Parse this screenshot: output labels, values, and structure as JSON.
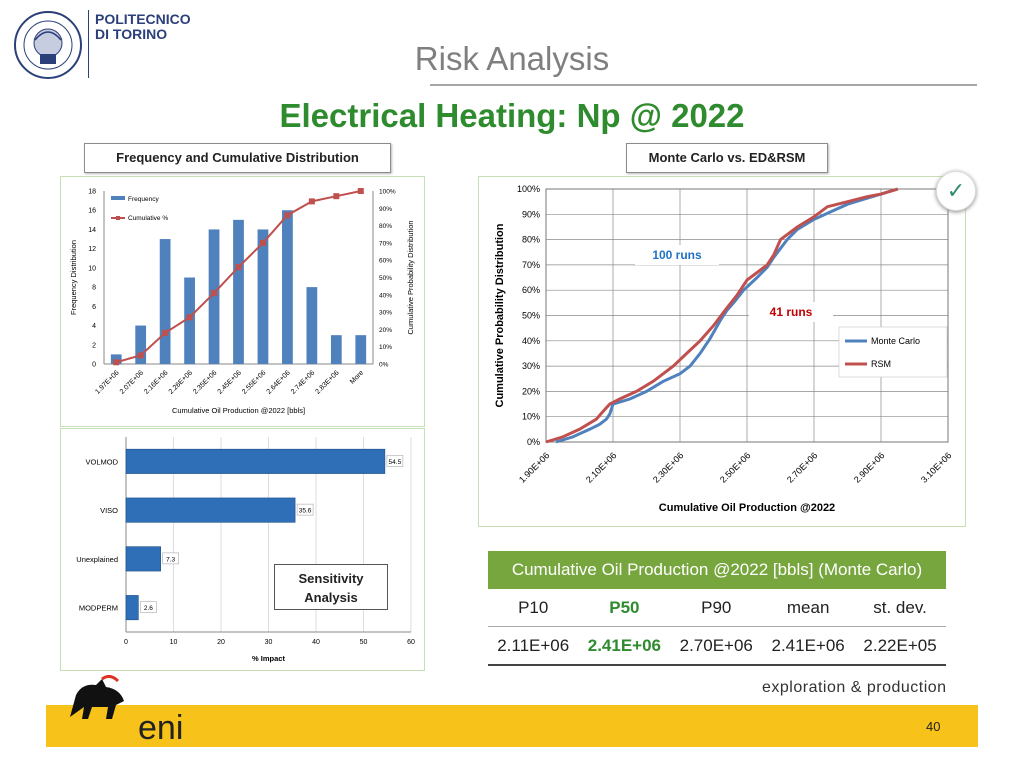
{
  "header": {
    "logo_line1": "POLITECNICO",
    "logo_line2": "DI TORINO",
    "seal_text": "POLITECNICO DI TORINO 1859 1906",
    "title": "Risk Analysis"
  },
  "slide_title": "Electrical Heating: Np @ 2022",
  "labels": {
    "freq_box": "Frequency and Cumulative Distribution",
    "mc_box": "Monte Carlo vs. ED&RSM",
    "sens_box_line1": "Sensitivity",
    "sens_box_line2": "Analysis"
  },
  "check_icon": "checkmark-icon",
  "chart_data": [
    {
      "type": "bar",
      "title": "",
      "xlabel": "Cumulative Oil Production @2022 [bbls]",
      "ylabel": "Frequency Distribution",
      "y2label": "Cumulative Probability Distribution",
      "categories": [
        "1.97E+06",
        "2.07E+06",
        "2.16E+06",
        "2.26E+06",
        "2.35E+06",
        "2.45E+06",
        "2.55E+06",
        "2.64E+06",
        "2.74E+06",
        "2.83E+06",
        "More"
      ],
      "ylim": [
        0,
        18
      ],
      "yticks": [
        "0",
        "2",
        "4",
        "6",
        "8",
        "10",
        "12",
        "14",
        "16",
        "18"
      ],
      "y2ticks": [
        "0%",
        "10%",
        "20%",
        "30%",
        "40%",
        "50%",
        "60%",
        "70%",
        "80%",
        "90%",
        "100%"
      ],
      "series": [
        {
          "name": "Frequency",
          "type": "bar",
          "values": [
            1,
            4,
            13,
            9,
            14,
            15,
            14,
            16,
            8,
            3,
            3
          ]
        },
        {
          "name": "Cumulative %",
          "type": "line",
          "values": [
            1,
            5,
            18,
            27,
            41,
            56,
            70,
            86,
            94,
            97,
            100
          ]
        }
      ],
      "legend": "top-left"
    },
    {
      "type": "line",
      "title": "",
      "xlabel": "Cumulative Oil Production @2022",
      "ylabel": "Cumulative Probability Distribution",
      "xticks": [
        "1.90E+06",
        "2.10E+06",
        "2.30E+06",
        "2.50E+06",
        "2.70E+06",
        "2.90E+06",
        "3.10E+06"
      ],
      "xlim": [
        1900000,
        3100000
      ],
      "ylim": [
        0,
        100
      ],
      "yticks": [
        "0%",
        "10%",
        "20%",
        "30%",
        "40%",
        "50%",
        "60%",
        "70%",
        "80%",
        "90%",
        "100%"
      ],
      "grid": true,
      "legend": "right",
      "annotations": [
        "100 runs",
        "41 runs"
      ],
      "series": [
        {
          "name": "Monte Carlo",
          "color": "#4f81bd",
          "x": [
            1930000,
            1980000,
            2030000,
            2060000,
            2080000,
            2090000,
            2100000,
            2150000,
            2200000,
            2250000,
            2300000,
            2330000,
            2360000,
            2390000,
            2420000,
            2440000,
            2460000,
            2490000,
            2530000,
            2560000,
            2580000,
            2620000,
            2650000,
            2700000,
            2750000,
            2800000,
            2850000,
            2900000,
            2950000
          ],
          "y": [
            0,
            2,
            5,
            7,
            9,
            11,
            15,
            17,
            20,
            24,
            27,
            30,
            35,
            41,
            48,
            52,
            55,
            60,
            65,
            69,
            73,
            80,
            84,
            88,
            91,
            94,
            96,
            98,
            100
          ]
        },
        {
          "name": "RSM",
          "color": "#c0504d",
          "x": [
            1900000,
            1950000,
            2000000,
            2050000,
            2070000,
            2090000,
            2120000,
            2170000,
            2220000,
            2280000,
            2320000,
            2360000,
            2400000,
            2440000,
            2470000,
            2500000,
            2530000,
            2560000,
            2580000,
            2600000,
            2650000,
            2700000,
            2740000,
            2800000,
            2860000,
            2900000,
            2950000
          ],
          "y": [
            0,
            2,
            5,
            9,
            12,
            15,
            17,
            20,
            24,
            30,
            35,
            40,
            46,
            53,
            58,
            64,
            67,
            70,
            74,
            80,
            85,
            89,
            93,
            95,
            97,
            98,
            100
          ]
        }
      ]
    },
    {
      "type": "bar",
      "orientation": "horizontal",
      "title": "",
      "xlabel": "% Impact",
      "categories": [
        "VOLMOD",
        "VISO",
        "Unexplained",
        "MODPERM"
      ],
      "values": [
        54.5,
        35.6,
        7.3,
        2.6
      ],
      "data_labels": [
        "54.5",
        "35.6",
        "7.3",
        "2.6"
      ],
      "xlim": [
        0,
        60
      ],
      "xticks": [
        "0",
        "10",
        "20",
        "30",
        "40",
        "50",
        "60"
      ]
    }
  ],
  "stats_table": {
    "title": "Cumulative Oil Production @2022 [bbls] (Monte Carlo)",
    "headers": [
      "P10",
      "P50",
      "P90",
      "mean",
      "st. dev."
    ],
    "values": [
      "2.11E+06",
      "2.41E+06",
      "2.70E+06",
      "2.41E+06",
      "2.22E+05"
    ],
    "header_color": "#77a63e",
    "highlight_color": "#2e8b2e"
  },
  "footer": {
    "tagline": "exploration & production",
    "brand": "eni",
    "page_number": "40",
    "bar_color": "#f7c31a"
  }
}
